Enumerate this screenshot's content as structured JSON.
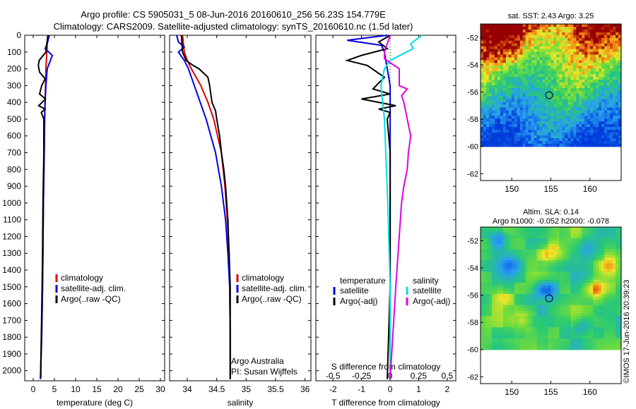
{
  "header": {
    "line1": "Argo profile: CS 5905031_5 08-Jun-2016 20160610_256 56.23S 154.779E",
    "line2": "Climatology: CARS2009. Satellite-adjusted climatology: synTS_20160610.nc (1.5d later)"
  },
  "colors": {
    "climatology": "#dd0000",
    "satellite": "#0000dd",
    "argo": "#000000",
    "cyan": "#00e0e0",
    "magenta": "#e000e0"
  },
  "depth_ticks": [
    "0",
    "100",
    "200",
    "300",
    "400",
    "500",
    "600",
    "700",
    "800",
    "900",
    "1000",
    "1100",
    "1200",
    "1300",
    "1400",
    "1500",
    "1600",
    "1700",
    "1800",
    "1900",
    "2000"
  ],
  "chart_data": [
    {
      "type": "line",
      "panel": "temperature",
      "xlabel": "temperature (deg C)",
      "xlim": [
        -2,
        31
      ],
      "ylim": [
        2060,
        0
      ],
      "xticks": [
        "0",
        "5",
        "10",
        "15",
        "20",
        "25",
        "30"
      ],
      "series": [
        {
          "name": "climatology",
          "y": [
            0,
            100,
            200,
            300,
            400,
            500,
            700,
            1000,
            1300,
            1500,
            1800,
            2050
          ],
          "x": [
            3.4,
            3.2,
            3.0,
            2.9,
            2.8,
            2.7,
            2.6,
            2.4,
            2.3,
            2.2,
            2.0,
            1.7
          ]
        },
        {
          "name": "satellite-adj. clim.",
          "y": [
            0,
            50,
            80,
            120,
            200,
            300,
            400,
            500,
            700,
            1000,
            1300,
            1500,
            1800,
            2050
          ],
          "x": [
            3.8,
            3.3,
            2.8,
            4.5,
            3.3,
            3.0,
            2.8,
            2.7,
            2.6,
            2.4,
            2.3,
            2.2,
            2.0,
            1.7
          ]
        },
        {
          "name": "Argo(..raw -QC)",
          "y": [
            0,
            50,
            100,
            150,
            180,
            220,
            260,
            300,
            350,
            380,
            420,
            440,
            460,
            500,
            700,
            1000,
            1300,
            1500,
            1800,
            1950,
            2040
          ],
          "x": [
            3.5,
            3.2,
            3.0,
            1.4,
            1.2,
            1.5,
            2.8,
            2.0,
            1.5,
            2.9,
            1.3,
            2.8,
            1.9,
            2.5,
            2.5,
            2.3,
            2.2,
            2.1,
            1.9,
            1.8,
            1.8
          ]
        }
      ],
      "legend": [
        "climatology",
        "satellite-adj. clim.",
        "Argo(..raw -QC)"
      ]
    },
    {
      "type": "line",
      "panel": "salinity",
      "xlabel": "salinity",
      "xlim": [
        33.7,
        36.1
      ],
      "ylim": [
        2060,
        0
      ],
      "xticks": [
        "34",
        "34.5",
        "35",
        "35.5",
        "36"
      ],
      "series": [
        {
          "name": "climatology",
          "y": [
            0,
            100,
            150,
            200,
            300,
            400,
            500,
            700,
            900,
            1100,
            1300,
            1500,
            1800,
            2050
          ],
          "x": [
            33.92,
            33.95,
            34.0,
            34.07,
            34.23,
            34.35,
            34.45,
            34.58,
            34.64,
            34.68,
            34.71,
            34.72,
            34.73,
            34.73
          ]
        },
        {
          "name": "satellite-adj. clim.",
          "y": [
            0,
            40,
            70,
            100,
            150,
            200,
            300,
            400,
            500,
            700,
            900,
            1100,
            1300,
            1500,
            1800,
            2050
          ],
          "x": [
            33.82,
            33.85,
            33.95,
            33.85,
            33.95,
            34.02,
            34.12,
            34.22,
            34.32,
            34.48,
            34.58,
            34.65,
            34.69,
            34.72,
            34.73,
            34.73
          ]
        },
        {
          "name": "Argo(..raw -QC)",
          "y": [
            0,
            100,
            150,
            180,
            200,
            250,
            300,
            350,
            400,
            450,
            500,
            600,
            700,
            800,
            900,
            1000,
            1100,
            1200,
            1300,
            1400,
            1500,
            1600,
            1800,
            2050
          ],
          "x": [
            33.9,
            33.92,
            33.98,
            34.1,
            34.2,
            34.35,
            34.38,
            34.4,
            34.42,
            34.48,
            34.5,
            34.55,
            34.58,
            34.62,
            34.65,
            34.67,
            34.69,
            34.7,
            34.71,
            34.72,
            34.73,
            34.73,
            34.73,
            34.73
          ]
        }
      ],
      "legend": [
        "climatology",
        "satellite-adj. clim.",
        "Argo(..raw -QC)"
      ],
      "annotations": [
        "Argo Australia",
        "PI: Susan Wijffels"
      ]
    },
    {
      "type": "line",
      "panel": "differences",
      "xlabel": "T difference from climatology",
      "xlabel2": "S difference from climatology",
      "xlim": [
        -2.6,
        2.3
      ],
      "ylim": [
        2060,
        0
      ],
      "xticks_T": [
        "-2",
        "-1",
        "0",
        "1",
        "2"
      ],
      "xticks_S": [
        "-0.5",
        "-0.25",
        "0",
        "0.25",
        "0.5"
      ],
      "series": [
        {
          "name": "temperature satellite",
          "y": [
            0,
            30,
            60,
            100,
            200,
            300,
            500,
            1000,
            1500,
            2050
          ],
          "x": [
            -0.1,
            -1.5,
            -0.3,
            -0.2,
            -0.1,
            0.0,
            0.0,
            0.0,
            0.0,
            0.0
          ]
        },
        {
          "name": "temperature Argo(-adj)",
          "y": [
            0,
            40,
            80,
            120,
            150,
            180,
            250,
            320,
            350,
            380,
            420,
            440,
            460,
            500,
            700,
            1000,
            1500,
            2050
          ],
          "x": [
            0.0,
            -0.4,
            -0.1,
            -1.0,
            -1.5,
            -0.8,
            -0.2,
            -0.6,
            0.0,
            -1.0,
            0.2,
            -0.4,
            0.0,
            -0.1,
            0.0,
            0.0,
            0.0,
            -0.1
          ]
        },
        {
          "name": "salinity satellite",
          "y": [
            0,
            50,
            80,
            150,
            200,
            300,
            500,
            1000,
            1500,
            2050
          ],
          "x": [
            0.28,
            0.18,
            0.2,
            0.0,
            -0.05,
            -0.08,
            -0.05,
            -0.02,
            0.0,
            0.0
          ]
        },
        {
          "name": "salinity Argo(-adj)",
          "y": [
            0,
            100,
            140,
            200,
            300,
            320,
            360,
            400,
            500,
            600,
            700,
            800,
            900,
            1000,
            1500,
            2050
          ],
          "x": [
            0.0,
            -0.05,
            -0.05,
            0.08,
            0.08,
            0.15,
            0.1,
            0.12,
            0.15,
            0.18,
            0.16,
            0.15,
            0.12,
            0.1,
            0.05,
            0.0
          ]
        }
      ],
      "legend_titles": [
        "temperature",
        "salinity"
      ],
      "legend": [
        "satellite",
        "Argo(-adj)",
        "satellite",
        "Argo(-adj)"
      ]
    },
    {
      "type": "heatmap",
      "panel": "sst-map",
      "title": "sat. SST: 2.43 Argo: 3.25",
      "xticks": [
        "150",
        "155",
        "160"
      ],
      "yticks": [
        "-52",
        "-54",
        "-56",
        "-58",
        "-60",
        "-62"
      ],
      "xlim": [
        146,
        164
      ],
      "ylim": [
        -62.5,
        -51
      ]
    },
    {
      "type": "heatmap",
      "panel": "sla-map",
      "title": "Altim. SLA: 0.14",
      "subtitle": "Argo h1000: -0.052 h2000: -0.078",
      "xticks": [
        "150",
        "155",
        "160"
      ],
      "yticks": [
        "-52",
        "-54",
        "-56",
        "-58",
        "-60",
        "-62"
      ],
      "xlim": [
        146,
        164
      ],
      "ylim": [
        -62.5,
        -51
      ]
    }
  ],
  "credit": "©IMOS 17-Jun-2016 20:39:23"
}
